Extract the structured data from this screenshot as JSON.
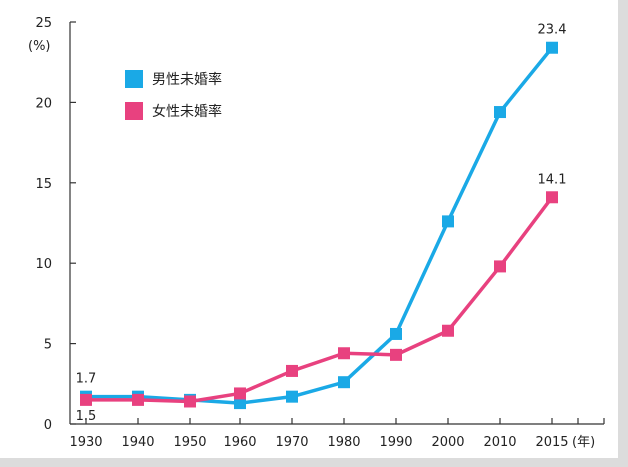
{
  "chart_data": {
    "type": "line",
    "y_unit": "(%)",
    "x_unit": "(年)",
    "x": [
      "1930",
      "1940",
      "1950",
      "1960",
      "1970",
      "1980",
      "1990",
      "2000",
      "2010",
      "2015"
    ],
    "ylim": [
      0,
      25
    ],
    "y_ticks": [
      0,
      5,
      10,
      15,
      20,
      25
    ],
    "grid": false,
    "legend_position": "top-left",
    "series": [
      {
        "name": "男性未婚率",
        "color": "#1aa9e6",
        "values": [
          1.7,
          1.7,
          1.5,
          1.3,
          1.7,
          2.6,
          5.6,
          12.6,
          19.4,
          23.4
        ]
      },
      {
        "name": "女性未婚率",
        "color": "#e8417f",
        "values": [
          1.5,
          1.5,
          1.4,
          1.9,
          3.3,
          4.4,
          4.3,
          5.8,
          9.8,
          14.1
        ]
      }
    ],
    "annotations": [
      {
        "text": "23.4",
        "series": 0,
        "index": 9
      },
      {
        "text": "14.1",
        "series": 1,
        "index": 9
      },
      {
        "text": "1.7",
        "series": 0,
        "index": 0
      },
      {
        "text": "1.5",
        "series": 1,
        "index": 0
      }
    ]
  }
}
